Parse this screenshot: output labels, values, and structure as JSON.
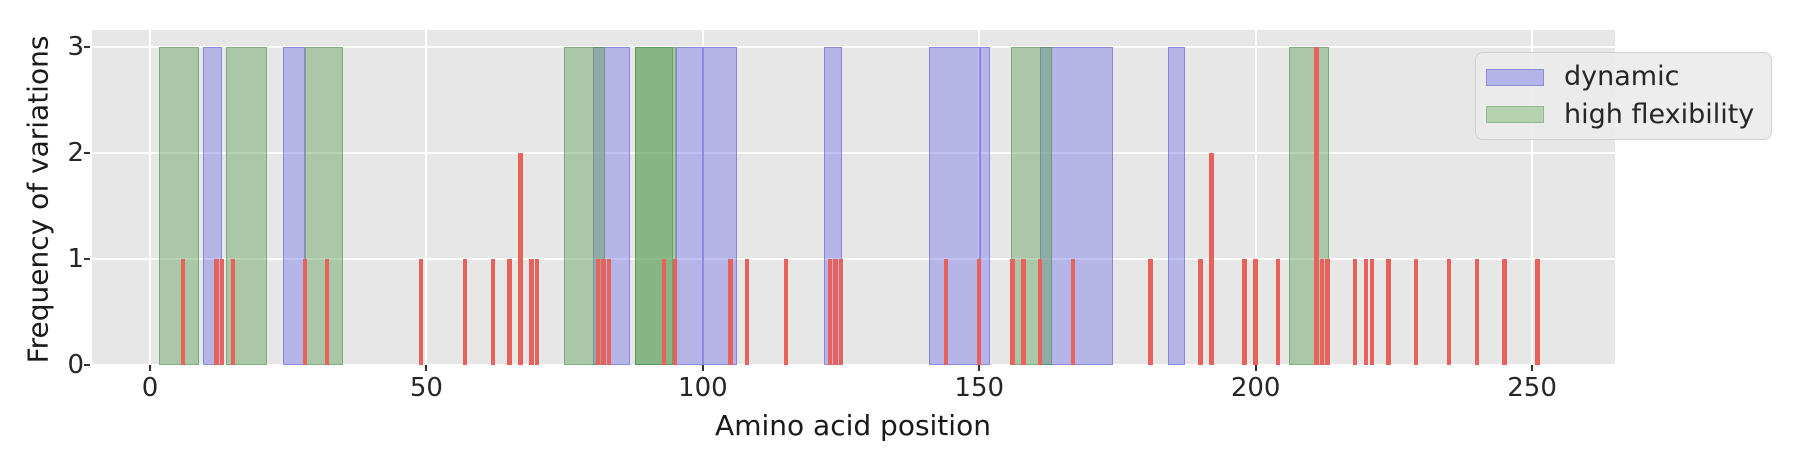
{
  "chart_data": {
    "type": "bar",
    "title": "",
    "xlabel": "Amino acid position",
    "ylabel": "Frequency of variations",
    "legend": [
      {
        "label": "dynamic",
        "key": "dynamic"
      },
      {
        "label": "high flexibility",
        "key": "flexibility"
      }
    ],
    "legend_position": "upper right",
    "grid": true,
    "xticks": [
      0,
      50,
      100,
      150,
      200,
      250
    ],
    "yticks": [
      0,
      1,
      2,
      3
    ],
    "xlim": [
      -10.5,
      265
    ],
    "ylim": [
      0,
      3.16
    ],
    "bar_width": 0.8,
    "bars": [
      {
        "x": 6,
        "h": 1
      },
      {
        "x": 12,
        "h": 1
      },
      {
        "x": 13,
        "h": 1
      },
      {
        "x": 15,
        "h": 1
      },
      {
        "x": 28,
        "h": 1
      },
      {
        "x": 32,
        "h": 1
      },
      {
        "x": 49,
        "h": 1
      },
      {
        "x": 57,
        "h": 1
      },
      {
        "x": 62,
        "h": 1
      },
      {
        "x": 65,
        "h": 1
      },
      {
        "x": 67,
        "h": 2
      },
      {
        "x": 69,
        "h": 1
      },
      {
        "x": 70,
        "h": 1
      },
      {
        "x": 81,
        "h": 1
      },
      {
        "x": 82,
        "h": 1
      },
      {
        "x": 83,
        "h": 1
      },
      {
        "x": 93,
        "h": 1
      },
      {
        "x": 95,
        "h": 1
      },
      {
        "x": 105,
        "h": 1
      },
      {
        "x": 108,
        "h": 1
      },
      {
        "x": 115,
        "h": 1
      },
      {
        "x": 123,
        "h": 1
      },
      {
        "x": 124,
        "h": 1
      },
      {
        "x": 125,
        "h": 1
      },
      {
        "x": 144,
        "h": 1
      },
      {
        "x": 150,
        "h": 1
      },
      {
        "x": 156,
        "h": 1
      },
      {
        "x": 158,
        "h": 1
      },
      {
        "x": 161,
        "h": 1
      },
      {
        "x": 167,
        "h": 1
      },
      {
        "x": 181,
        "h": 1
      },
      {
        "x": 190,
        "h": 1
      },
      {
        "x": 192,
        "h": 2
      },
      {
        "x": 198,
        "h": 1
      },
      {
        "x": 200,
        "h": 1
      },
      {
        "x": 204,
        "h": 1
      },
      {
        "x": 211,
        "h": 3
      },
      {
        "x": 212,
        "h": 1
      },
      {
        "x": 213,
        "h": 1
      },
      {
        "x": 218,
        "h": 1
      },
      {
        "x": 220,
        "h": 1
      },
      {
        "x": 221,
        "h": 1
      },
      {
        "x": 224,
        "h": 1
      },
      {
        "x": 229,
        "h": 1
      },
      {
        "x": 235,
        "h": 1
      },
      {
        "x": 240,
        "h": 1
      },
      {
        "x": 245,
        "h": 1
      },
      {
        "x": 251,
        "h": 1
      }
    ],
    "dynamic_regions": [
      [
        9.6,
        13.0
      ],
      [
        24.0,
        28.1
      ],
      [
        80.2,
        86.8
      ],
      [
        95.1,
        100.1
      ],
      [
        100.1,
        106.2
      ],
      [
        121.9,
        125.1
      ],
      [
        140.9,
        150.2
      ],
      [
        150.2,
        151.9
      ],
      [
        161.0,
        174.2
      ],
      [
        184.2,
        187.2
      ]
    ],
    "flexibility_regions": [
      [
        1.7,
        8.9
      ],
      [
        13.7,
        21.1
      ],
      [
        28.1,
        34.9
      ],
      [
        74.9,
        82.3
      ],
      [
        87.7,
        95.1
      ],
      [
        87.7,
        94.6
      ],
      [
        155.8,
        163.2
      ],
      [
        206.0,
        213.2
      ]
    ],
    "region_height": 3,
    "colors": {
      "bar": "#e8615a",
      "dynamic_fill": "rgba(110,110,230,0.42)",
      "dynamic_edge": "rgba(95,95,215,0.55)",
      "flexibility_fill": "rgba(95,160,90,0.45)",
      "flexibility_edge": "rgba(75,140,75,0.5)",
      "plot_background": "#e7e7e7",
      "grid": "#ffffff",
      "text": "#262626",
      "legend_patch_dynamic": "#b4b4e8",
      "legend_patch_dynamic_edge": "#8c8cd2",
      "legend_patch_flexibility": "#b5d3af",
      "legend_patch_flexibility_edge": "#8cba8a"
    }
  }
}
